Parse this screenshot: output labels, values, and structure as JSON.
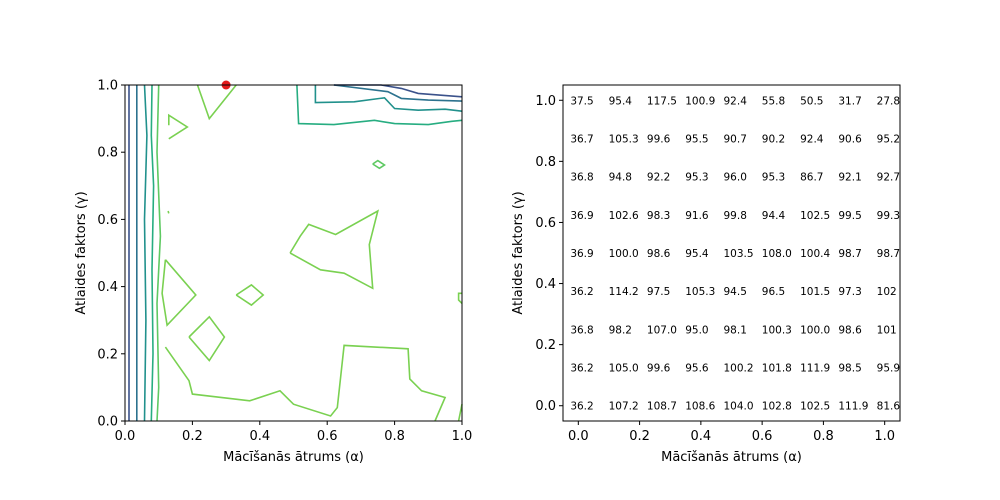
{
  "chart_data": [
    {
      "type": "contour",
      "xlabel": "Mācīšanās ātrums (α)",
      "ylabel": "Atlaides faktors (γ)",
      "xlim": [
        0,
        1
      ],
      "ylim": [
        0,
        1
      ],
      "xticks": [
        "0.0",
        "0.2",
        "0.4",
        "0.6",
        "0.8",
        "1.0"
      ],
      "yticks": [
        "0.0",
        "0.2",
        "0.4",
        "0.6",
        "0.8",
        "1.0"
      ],
      "grid": false,
      "contour_colors": [
        "#3b528b",
        "#2c728e",
        "#21918c",
        "#27ad81",
        "#5ec962",
        "#7ad151"
      ],
      "marker": {
        "x": 0.3,
        "y": 1.0,
        "color": "#e31a1c"
      }
    },
    {
      "type": "table",
      "xlabel": "Mācīšanās ātrums (α)",
      "ylabel": "Atlaides faktors (γ)",
      "xlim": [
        -0.05,
        1.05
      ],
      "ylim": [
        -0.05,
        1.05
      ],
      "xticks": [
        "0.0",
        "0.2",
        "0.4",
        "0.6",
        "0.8",
        "1.0"
      ],
      "yticks": [
        "0.0",
        "0.2",
        "0.4",
        "0.6",
        "0.8",
        "1.0"
      ],
      "alpha_values": [
        0.0,
        0.125,
        0.25,
        0.375,
        0.5,
        0.625,
        0.75,
        0.875,
        1.0
      ],
      "gamma_values": [
        0.0,
        0.125,
        0.25,
        0.375,
        0.5,
        0.625,
        0.75,
        0.875,
        1.0
      ],
      "rows": [
        {
          "gamma": 1.0,
          "values": [
            "37.5",
            "95.4",
            "117.5",
            "100.9",
            "92.4",
            "55.8",
            "50.5",
            "31.7",
            "27.8"
          ]
        },
        {
          "gamma": 0.875,
          "values": [
            "36.7",
            "105.3",
            "99.6",
            "95.5",
            "90.7",
            "90.2",
            "92.4",
            "90.6",
            "95.2"
          ]
        },
        {
          "gamma": 0.75,
          "values": [
            "36.8",
            "94.8",
            "92.2",
            "95.3",
            "96.0",
            "95.3",
            "86.7",
            "92.1",
            "92.7"
          ]
        },
        {
          "gamma": 0.625,
          "values": [
            "36.9",
            "102.6",
            "98.3",
            "91.6",
            "99.8",
            "94.4",
            "102.5",
            "99.5",
            "99.3"
          ]
        },
        {
          "gamma": 0.5,
          "values": [
            "36.9",
            "100.0",
            "98.6",
            "95.4",
            "103.5",
            "108.0",
            "100.4",
            "98.7",
            "98.7"
          ]
        },
        {
          "gamma": 0.375,
          "values": [
            "36.2",
            "114.2",
            "97.5",
            "105.3",
            "94.5",
            "96.5",
            "101.5",
            "97.3",
            "102"
          ]
        },
        {
          "gamma": 0.25,
          "values": [
            "36.8",
            "98.2",
            "107.0",
            "95.0",
            "98.1",
            "100.3",
            "100.0",
            "98.6",
            "101"
          ]
        },
        {
          "gamma": 0.125,
          "values": [
            "36.2",
            "105.0",
            "99.6",
            "95.6",
            "100.2",
            "101.8",
            "111.9",
            "98.5",
            "95.9"
          ]
        },
        {
          "gamma": 0.0,
          "values": [
            "36.2",
            "107.2",
            "108.7",
            "108.6",
            "104.0",
            "102.8",
            "102.5",
            "111.9",
            "81.6"
          ]
        }
      ]
    }
  ]
}
